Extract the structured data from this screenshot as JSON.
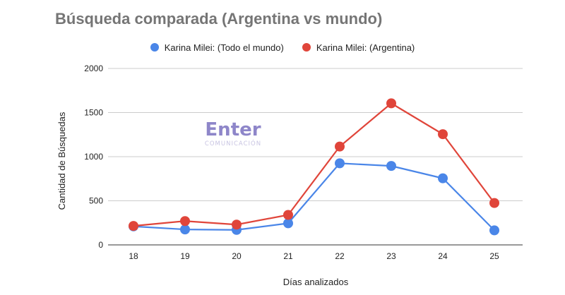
{
  "chart_data": {
    "type": "line",
    "title": "Búsqueda comparada (Argentina vs mundo)",
    "xlabel": "Días analizados",
    "ylabel": "Cantidad de Búsquedas",
    "categories": [
      "18",
      "19",
      "20",
      "21",
      "22",
      "23",
      "24",
      "25"
    ],
    "ylim": [
      0,
      2000
    ],
    "yticks": [
      0,
      500,
      1000,
      1500,
      2000
    ],
    "grid": true,
    "legend_position": "top",
    "series": [
      {
        "name": "Karina Milei: (Todo el mundo)",
        "color": "#4a86e8",
        "values": [
          210,
          175,
          170,
          245,
          925,
          895,
          755,
          165
        ]
      },
      {
        "name": "Karina Milei: (Argentina)",
        "color": "#e0453a",
        "values": [
          215,
          270,
          230,
          340,
          1115,
          1605,
          1255,
          475
        ]
      }
    ]
  },
  "watermark": {
    "main": "Enter",
    "sub": "COMUNICACIÓN"
  }
}
